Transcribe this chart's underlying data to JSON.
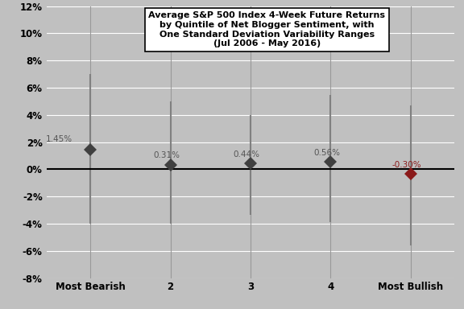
{
  "categories": [
    "Most Bearish",
    "2",
    "3",
    "4",
    "Most Bullish"
  ],
  "means": [
    1.45,
    0.31,
    0.44,
    0.56,
    -0.3
  ],
  "upper_errors": [
    5.55,
    4.69,
    3.56,
    4.94,
    5.0
  ],
  "lower_errors": [
    5.45,
    4.31,
    3.76,
    4.44,
    5.3
  ],
  "labels": [
    "1.45%",
    "0.31%",
    "0.44%",
    "0.56%",
    "-0.30%"
  ],
  "point_colors": [
    "#404040",
    "#404040",
    "#404040",
    "#404040",
    "#8B1A1A"
  ],
  "label_colors": [
    "#555555",
    "#555555",
    "#555555",
    "#555555",
    "#8B1A1A"
  ],
  "error_color": "#808080",
  "background_color": "#C0C0C0",
  "title_line1": "Average S&P 500 Index 4-Week Future Returns",
  "title_line2": "by Quintile of Net Blogger Sentiment, with",
  "title_line3": "One Standard Deviation Variability Ranges",
  "title_line4": "(Jul 2006 - May 2016)",
  "ylim_min": -8,
  "ylim_max": 12,
  "yticks": [
    -8,
    -6,
    -4,
    -2,
    0,
    2,
    4,
    6,
    8,
    10,
    12
  ],
  "marker_size": 8,
  "grid_color": "#aaaaaa"
}
